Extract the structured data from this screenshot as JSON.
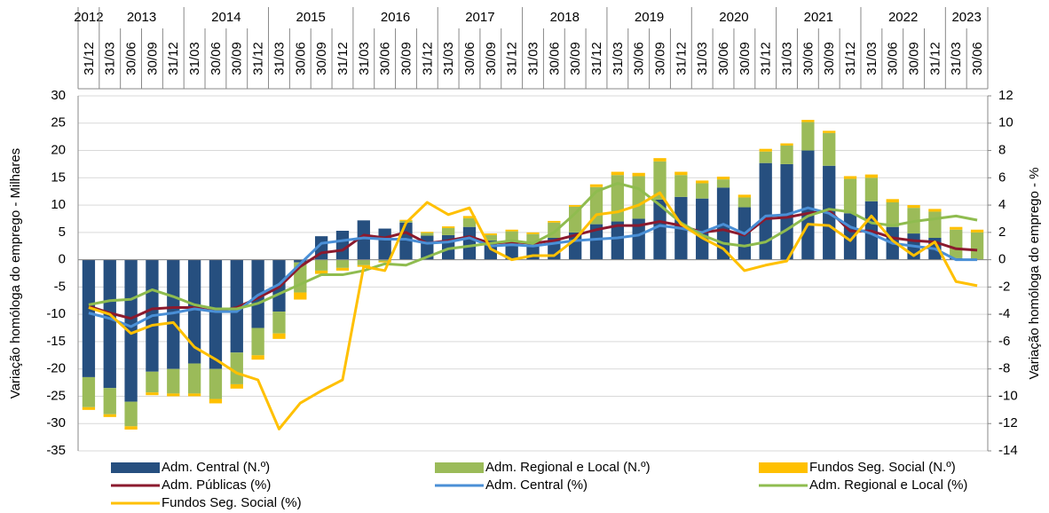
{
  "chart_data": {
    "type": "bar",
    "y_label": "Variação homóloga do emprego -  Milhares",
    "y2_label": "Variação homóloga do emprego - %",
    "years": [
      "2012",
      "2013",
      "2014",
      "2015",
      "2016",
      "2017",
      "2018",
      "2019",
      "2020",
      "2021",
      "2022",
      "2023"
    ],
    "categories": [
      "31/12",
      "31/03",
      "30/06",
      "30/09",
      "31/12",
      "31/03",
      "30/06",
      "30/09",
      "31/12",
      "31/03",
      "30/06",
      "30/09",
      "31/12",
      "31/03",
      "30/06",
      "30/09",
      "31/12",
      "31/03",
      "30/06",
      "30/09",
      "31/12",
      "31/03",
      "30/06",
      "30/09",
      "31/12",
      "31/03",
      "30/06",
      "30/09",
      "31/12",
      "31/03",
      "30/06",
      "30/09",
      "31/12",
      "31/03",
      "30/06",
      "30/09",
      "31/12",
      "31/03",
      "30/06",
      "30/09",
      "31/12",
      "31/03",
      "30/06"
    ],
    "ylim": [
      -35,
      30
    ],
    "yticks": [
      -35,
      -30,
      -25,
      -20,
      -15,
      -10,
      -5,
      0,
      5,
      10,
      15,
      20,
      25,
      30
    ],
    "y2lim": [
      -14,
      12
    ],
    "y2ticks": [
      -14,
      -12,
      -10,
      -8,
      -6,
      -4,
      -2,
      0,
      2,
      4,
      6,
      8,
      10,
      12
    ],
    "grid": true,
    "legend": "bottom",
    "series": [
      {
        "name": "Adm. Central (N.º)",
        "type": "bar",
        "color": "#264f7f",
        "values": [
          -21.5,
          -23.5,
          -26,
          -20.5,
          -20,
          -19,
          -20,
          -17,
          -12.5,
          -9.5,
          -0.5,
          4.3,
          5.3,
          7.2,
          5.7,
          6.8,
          4.4,
          4.5,
          6,
          3.5,
          3,
          2.5,
          4,
          5,
          6.5,
          7,
          7.5,
          11,
          11.5,
          11.2,
          13.2,
          9.6,
          17.7,
          17.5,
          20,
          17.2,
          8.5,
          10.7,
          6,
          4.8,
          4,
          0.3,
          0
        ]
      },
      {
        "name": "Adm. Regional e Local (N.º)",
        "type": "bar",
        "color": "#9bbb59",
        "values": [
          -5.5,
          -4.8,
          -4.5,
          -3.8,
          -4.5,
          -5.5,
          -5.5,
          -5.8,
          -5,
          -4,
          -5.5,
          -2,
          -1.5,
          -1,
          -0.3,
          0.3,
          0.5,
          1.3,
          1.6,
          1,
          2.2,
          2.2,
          2.8,
          4.7,
          6.8,
          8.5,
          7.8,
          7,
          4,
          2.8,
          1.5,
          1.8,
          2.1,
          3.4,
          5.2,
          6,
          6.3,
          4.3,
          4.5,
          4.7,
          4.8,
          5.2,
          5
        ]
      },
      {
        "name": "Fundos Seg. Social (N.º)",
        "type": "bar",
        "color": "#ffc000",
        "values": [
          -0.5,
          -0.5,
          -0.6,
          -0.5,
          -0.5,
          -0.5,
          -0.8,
          -0.8,
          -0.8,
          -1,
          -1.3,
          -0.6,
          -0.5,
          -0.3,
          -0.2,
          0.2,
          0.2,
          0.3,
          0.4,
          0.3,
          0.3,
          0.3,
          0.3,
          0.3,
          0.5,
          0.6,
          0.6,
          0.6,
          0.6,
          0.5,
          0.5,
          0.5,
          0.5,
          0.4,
          0.4,
          0.4,
          0.5,
          0.6,
          0.6,
          0.5,
          0.5,
          0.5,
          0.5
        ]
      },
      {
        "name": "Adm. Públicas (%)",
        "type": "line",
        "axis": "y2",
        "color": "#8b1a2e",
        "values": [
          -3.4,
          -3.9,
          -4.3,
          -3.6,
          -3.5,
          -3.5,
          -3.8,
          -3.5,
          -2.8,
          -2,
          -0.5,
          0.5,
          0.7,
          1.8,
          1.6,
          2,
          1.2,
          1.4,
          1.7,
          1.2,
          1.3,
          1.2,
          1.4,
          1.8,
          2.2,
          2.5,
          2.5,
          2.8,
          2.5,
          2,
          2.2,
          1.8,
          3,
          3.1,
          3.4,
          3.6,
          2.1,
          2.1,
          1.6,
          1.4,
          1.3,
          0.8,
          0.7
        ]
      },
      {
        "name": "Adm. Central (%)",
        "type": "line",
        "axis": "y2",
        "color": "#4a8fd6",
        "values": [
          -3.9,
          -4.3,
          -4.9,
          -4.1,
          -3.9,
          -3.6,
          -3.8,
          -3.8,
          -2.6,
          -1.8,
          -0.3,
          1.2,
          1.4,
          1.6,
          1.5,
          1.5,
          1.2,
          1.3,
          1.6,
          1,
          1.1,
          1,
          1.2,
          1.4,
          1.5,
          1.6,
          1.8,
          2.5,
          2.3,
          2,
          2.6,
          1.9,
          3.2,
          3.3,
          3.8,
          3.4,
          2.4,
          1.9,
          1.2,
          1,
          0.8,
          0,
          0
        ]
      },
      {
        "name": "Adm. Regional e Local (%)",
        "type": "line",
        "axis": "y2",
        "color": "#8fbc4f",
        "values": [
          -3.3,
          -3,
          -2.9,
          -2.2,
          -2.7,
          -3.3,
          -3.6,
          -3.6,
          -3.2,
          -2.5,
          -1.8,
          -1.1,
          -1.1,
          -0.8,
          -0.3,
          -0.4,
          0.2,
          0.8,
          1,
          1.2,
          1.4,
          1.2,
          2,
          3.4,
          5,
          5.6,
          5.2,
          4,
          2.7,
          1.8,
          1.2,
          1,
          1.3,
          2.2,
          3.2,
          3.7,
          3.5,
          2.7,
          2.5,
          2.8,
          3,
          3.2,
          2.9
        ]
      },
      {
        "name": "Fundos Seg. Social (%)",
        "type": "line",
        "axis": "y2",
        "color": "#ffc000",
        "values": [
          -3.5,
          -4,
          -5.4,
          -4.8,
          -4.6,
          -6.4,
          -7.3,
          -8.3,
          -8.8,
          -12.4,
          -10.5,
          -9.6,
          -8.8,
          -0.5,
          -0.8,
          2.7,
          4.2,
          3.3,
          3.8,
          0.8,
          0,
          0.3,
          0.3,
          1.5,
          3.3,
          3.5,
          4,
          4.9,
          2.6,
          1.6,
          0.8,
          -0.8,
          -0.4,
          -0.1,
          2.6,
          2.5,
          1.4,
          3.2,
          1.4,
          0.3,
          1.3,
          -1.6,
          -1.9
        ]
      }
    ]
  }
}
